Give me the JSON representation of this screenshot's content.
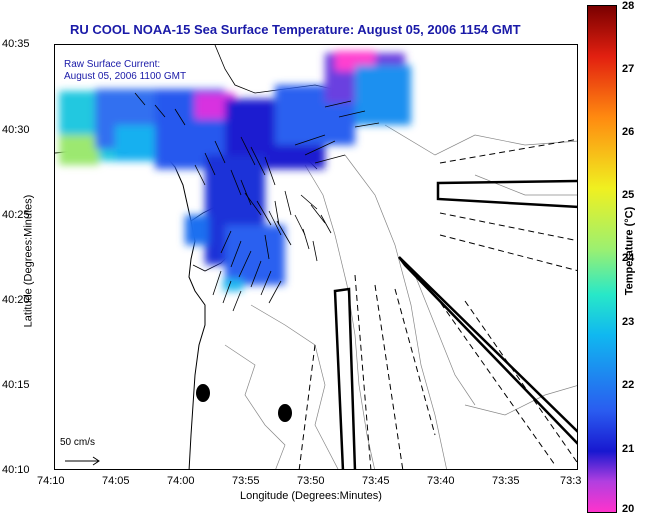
{
  "title": "RU COOL  NOAA-15  Sea Surface Temperature:  August 05, 2006 1154 GMT",
  "overlay": {
    "line1": "Raw Surface Current:",
    "line2": "August 05, 2006 1100 GMT"
  },
  "axes": {
    "ylabel": "Latitude (Degrees:Minutes)",
    "xlabel": "Longitude (Degrees:Minutes)",
    "yticks": [
      "40:35",
      "40:30",
      "40:25",
      "40:20",
      "40:15",
      "40:10"
    ],
    "xticks": [
      "74:10",
      "74:05",
      "74:00",
      "73:55",
      "73:50",
      "73:45",
      "73:40",
      "73:35",
      "73:3"
    ]
  },
  "scale_label": "50 cm/s",
  "colorbar": {
    "label": "Temperature (°C)",
    "ticks": [
      "28",
      "27",
      "26",
      "25",
      "24",
      "23",
      "22",
      "21",
      "20"
    ]
  },
  "colors": {
    "title": "#1a1aa8",
    "overlay_text": "#1a1aa8"
  }
}
